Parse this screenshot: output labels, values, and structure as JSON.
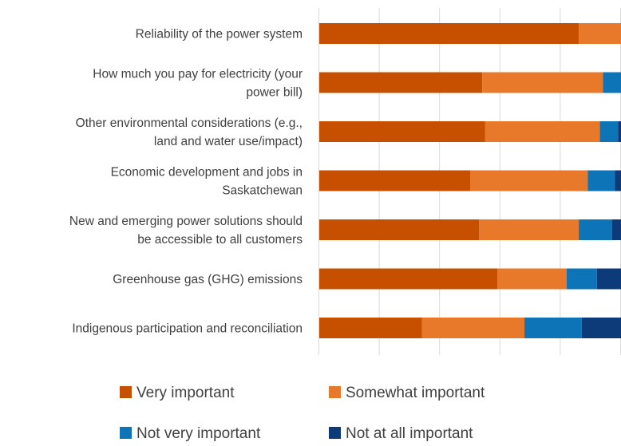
{
  "chart_data": {
    "type": "bar",
    "orientation": "horizontal",
    "stacked": true,
    "categories": [
      [
        "Reliability of the power system"
      ],
      [
        "How much you pay for electricity (your",
        "power bill)"
      ],
      [
        "Other environmental considerations (e.g.,",
        "land and water use/impact)"
      ],
      [
        "Economic development and jobs in",
        "Saskatchewan"
      ],
      [
        "New and emerging power solutions should",
        "be accessible to all customers"
      ],
      [
        "Greenhouse gas (GHG) emissions"
      ],
      [
        "Indigenous participation and reconciliation"
      ]
    ],
    "series": [
      {
        "name": "Very important",
        "color": "#C65000",
        "values": [
          86,
          54,
          55,
          50,
          53,
          59,
          34
        ]
      },
      {
        "name": "Somewhat important",
        "color": "#E8782A",
        "values": [
          14,
          40,
          38,
          39,
          33,
          23,
          34
        ]
      },
      {
        "name": "Not very important",
        "color": "#0E74B8",
        "values": [
          0,
          6,
          6,
          9,
          11,
          10,
          19
        ]
      },
      {
        "name": "Not at all important",
        "color": "#0D3A78",
        "values": [
          0,
          0,
          1,
          2,
          3,
          8,
          13
        ]
      }
    ],
    "xlim": [
      0,
      100
    ],
    "grid": true,
    "legend": "bottom"
  }
}
